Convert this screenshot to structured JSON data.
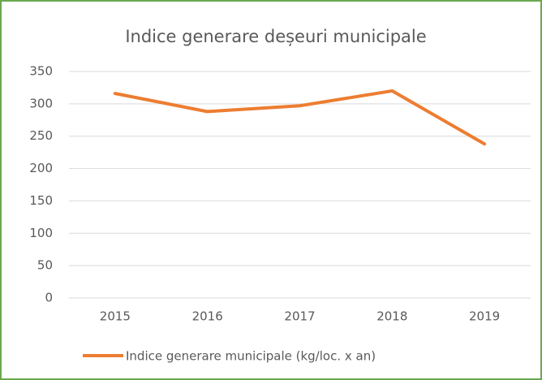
{
  "chart_data": {
    "type": "line",
    "title": "Indice generare deșeuri municipale",
    "categories": [
      "2015",
      "2016",
      "2017",
      "2018",
      "2019"
    ],
    "series": [
      {
        "name": "Indice generare municipale (kg/loc. x an)",
        "color": "#ed7d31",
        "values": [
          316,
          288,
          297,
          320,
          238
        ]
      }
    ],
    "ylim": [
      0,
      350
    ],
    "yticks": [
      0,
      50,
      100,
      150,
      200,
      250,
      300,
      350
    ],
    "grid": true,
    "legend": "bottom"
  }
}
